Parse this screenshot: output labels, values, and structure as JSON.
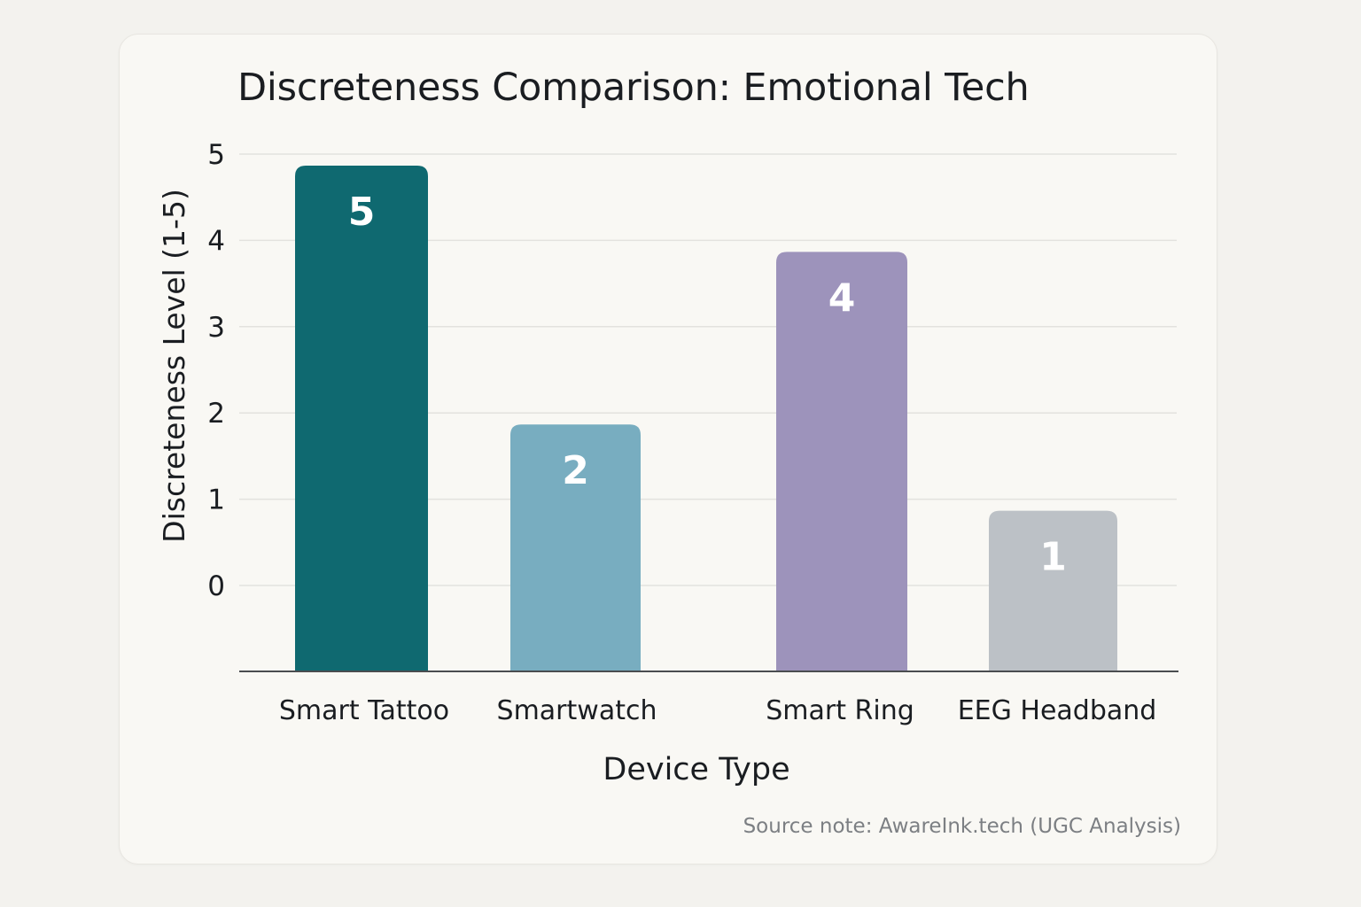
{
  "chart_data": {
    "type": "bar",
    "title": "Discreteness Comparison: Emotional Tech",
    "xlabel": "Device Type",
    "ylabel": "Discreteness Level (1-5)",
    "categories": [
      "Smart Tattoo",
      "Smartwatch",
      "Smart Ring",
      "EEG Headband"
    ],
    "values": [
      5,
      2,
      4,
      1
    ],
    "value_labels": [
      "5",
      "2",
      "4",
      "1"
    ],
    "yticks": [
      "0",
      "1",
      "2",
      "3",
      "4",
      "5"
    ],
    "ylim": [
      0,
      5
    ],
    "grid": true,
    "colors": [
      "#0f6970",
      "#78adc0",
      "#9d93bb",
      "#bcc1c6"
    ]
  },
  "source_note": "Source note: AwareInk.tech (UGC Analysis)"
}
